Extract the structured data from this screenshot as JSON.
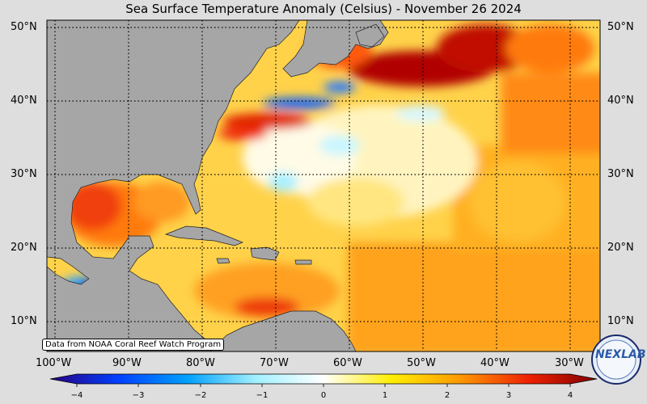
{
  "title": "Sea Surface Temperature Anomaly (Celsius) - November 26 2024",
  "credit": "Data from NOAA Coral Reef Watch Program",
  "logo_text": "NEXLAB",
  "lat_labels": [
    "50°N",
    "40°N",
    "30°N",
    "20°N",
    "10°N"
  ],
  "lon_labels": [
    "100°W",
    "90°W",
    "80°W",
    "70°W",
    "60°W",
    "50°W",
    "40°W",
    "30°W"
  ],
  "colorbar": {
    "ticks": [
      "−4",
      "−3",
      "−2",
      "−1",
      "0",
      "1",
      "2",
      "3",
      "4"
    ],
    "range": [
      -4,
      4
    ],
    "colors": [
      "#2a0080",
      "#0040ff",
      "#00a0ff",
      "#a0f0ff",
      "#ffffff",
      "#ffee00",
      "#ff9900",
      "#ee2200",
      "#800000"
    ]
  },
  "colors": {
    "land": "#a6a6a6",
    "background": "#dedede"
  }
}
